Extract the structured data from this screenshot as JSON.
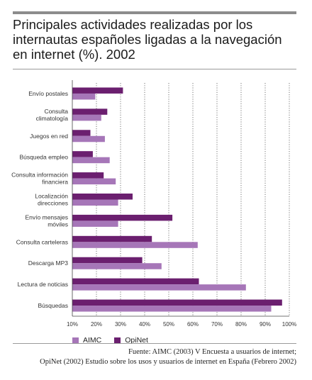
{
  "header": {
    "title": "Principales actividades realizadas por los internautas españoles ligadas a la navegación en internet (%). 2002"
  },
  "colors": {
    "AIMC": "#a676b8",
    "OpiNet": "#6b1f6f"
  },
  "chart_data": {
    "type": "bar",
    "orientation": "horizontal",
    "title": "Principales actividades realizadas por los internautas españoles ligadas a la navegación en internet (%). 2002",
    "categories": [
      "Envío postales",
      "Consulta\nclimatología",
      "Juegos en red",
      "Búsqueda empleo",
      "Consulta información\nfinanciera",
      "Localización\ndirecciones",
      "Envío mensajes\nmóviles",
      "Consulta carteleras",
      "Descarga MP3",
      "Lectura de noticias",
      "Búsquedas"
    ],
    "series": [
      {
        "name": "OpiNet",
        "values": [
          31,
          24.5,
          17.5,
          18.5,
          23,
          35,
          51.5,
          43,
          39,
          62.5,
          97
        ]
      },
      {
        "name": "AIMC",
        "values": [
          19.5,
          22,
          23.5,
          25.5,
          28,
          29,
          29,
          62,
          47,
          82,
          92.5
        ]
      }
    ],
    "xlim": [
      10,
      100
    ],
    "xticks": [
      "10%",
      "20%",
      "30%",
      "40%",
      "50%",
      "60%",
      "70%",
      "80%",
      "90%",
      "100%"
    ],
    "grid": "vertical dotted",
    "legend": "bottom-left"
  },
  "legend": {
    "aimc_label": "AIMC",
    "opinet_label": "OpiNet"
  },
  "source": {
    "line1": "Fuente: AIMC (2003) V Encuesta a usuarios de internet;",
    "line2": "OpiNet (2002) Estudio sobre los usos y usuarios de internet en España (Febrero 2002)"
  }
}
